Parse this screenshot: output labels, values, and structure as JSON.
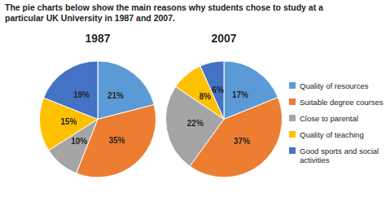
{
  "title": "The pie charts below show the main reasons why students chose to study at a particular UK University in 1987 and 2007.",
  "chart_data": [
    {
      "type": "pie",
      "title": "1987",
      "categories": [
        "Quality of resources",
        "Suitable degree courses",
        "Close to parental",
        "Quality of teaching",
        "Good sports and social activities"
      ],
      "values": [
        21,
        35,
        10,
        15,
        19
      ],
      "value_labels": [
        "21%",
        "35%",
        "10%",
        "15%",
        "19%"
      ],
      "colors": [
        "#5b9bd5",
        "#ed7d31",
        "#a5a5a5",
        "#ffc000",
        "#4472c4"
      ],
      "data_labels": true
    },
    {
      "type": "pie",
      "title": "2007",
      "categories": [
        "Quality of resources",
        "Suitable degree courses",
        "Close to parental",
        "Quality of teaching",
        "Good sports and social activities"
      ],
      "values": [
        17,
        37,
        22,
        8,
        6
      ],
      "value_labels": [
        "17%",
        "37%",
        "22%",
        "8%",
        "6%"
      ],
      "colors": [
        "#5b9bd5",
        "#ed7d31",
        "#a5a5a5",
        "#ffc000",
        "#4472c4"
      ],
      "data_labels": true,
      "legend": "right"
    }
  ]
}
